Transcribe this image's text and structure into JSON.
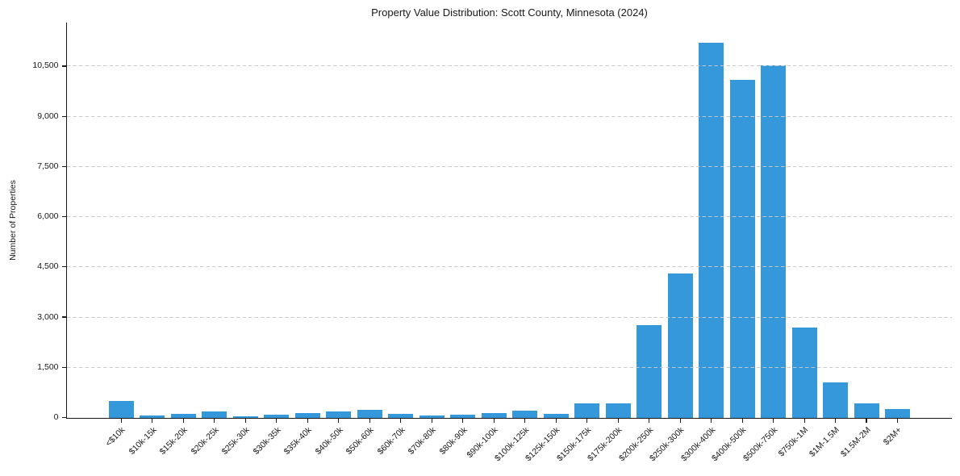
{
  "chart_data": {
    "type": "bar",
    "title": "Property Value Distribution: Scott County, Minnesota (2024)",
    "xlabel": "",
    "ylabel": "Number of Properties",
    "categories": [
      "<$10k",
      "$10k-15k",
      "$15k-20k",
      "$20k-25k",
      "$25k-30k",
      "$30k-35k",
      "$35k-40k",
      "$40k-50k",
      "$50k-60k",
      "$60k-70k",
      "$70k-80k",
      "$80k-90k",
      "$90k-100k",
      "$100k-125k",
      "$125k-150k",
      "$150k-175k",
      "$175k-200k",
      "$200k-250k",
      "$250k-300k",
      "$300k-400k",
      "$400k-500k",
      "$500k-750k",
      "$750k-1M",
      "$1M-1.5M",
      "$1.5M-2M",
      "$2M+"
    ],
    "values": [
      490,
      60,
      110,
      175,
      45,
      90,
      135,
      190,
      220,
      105,
      70,
      95,
      145,
      200,
      120,
      415,
      430,
      2770,
      4300,
      11200,
      10100,
      10520,
      2700,
      1060,
      425,
      250
    ],
    "yticks": [
      0,
      1500,
      3000,
      4500,
      6000,
      7500,
      9000,
      10500
    ],
    "ylim": [
      0,
      11800
    ],
    "bar_color": "#3498db",
    "grid": true,
    "grid_style": "dashed",
    "grid_color": "#c9c9c9",
    "legend_position": "none"
  }
}
